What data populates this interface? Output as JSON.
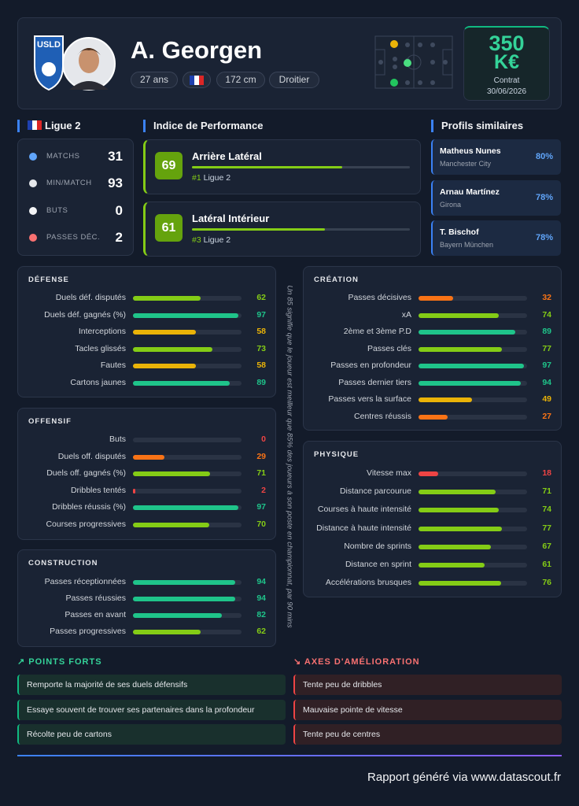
{
  "header": {
    "name": "A. Georgen",
    "tags": [
      "27 ans",
      "172 cm",
      "Droitier"
    ],
    "contract": {
      "amount": "350",
      "unit": "K€",
      "label": "Contrat",
      "date": "30/06/2026"
    }
  },
  "league": {
    "title": "Ligue 2",
    "stats": [
      {
        "label": "MATCHS",
        "value": 31
      },
      {
        "label": "MIN/MATCH",
        "value": 93
      },
      {
        "label": "BUTS",
        "value": 0
      },
      {
        "label": "PASSES DÉC.",
        "value": 2
      }
    ]
  },
  "performance": {
    "title": "Indice de Performance",
    "items": [
      {
        "score": 69,
        "role": "Arrière Latéral",
        "rank": "#1",
        "league": "Ligue 2"
      },
      {
        "score": 61,
        "role": "Latéral Intérieur",
        "rank": "#3",
        "league": "Ligue 2"
      }
    ]
  },
  "similar": {
    "title": "Profils similaires",
    "items": [
      {
        "name": "Matheus Nunes",
        "club": "Manchester City",
        "match": "80%"
      },
      {
        "name": "Arnau Martínez",
        "club": "Girona",
        "match": "78%"
      },
      {
        "name": "T. Bischof",
        "club": "Bayern München",
        "match": "78%"
      }
    ]
  },
  "panels": [
    {
      "title": "DÉFENSE",
      "rows": [
        {
          "label": "Duels déf. disputés",
          "value": 62
        },
        {
          "label": "Duels déf. gagnés (%)",
          "value": 97
        },
        {
          "label": "Interceptions",
          "value": 58
        },
        {
          "label": "Tacles glissés",
          "value": 73
        },
        {
          "label": "Fautes",
          "value": 58
        },
        {
          "label": "Cartons jaunes",
          "value": 89
        }
      ]
    },
    {
      "title": "OFFENSIF",
      "rows": [
        {
          "label": "Buts",
          "value": 0
        },
        {
          "label": "Duels off. disputés",
          "value": 29
        },
        {
          "label": "Duels off. gagnés (%)",
          "value": 71
        },
        {
          "label": "Dribbles tentés",
          "value": 2
        },
        {
          "label": "Dribbles réussis (%)",
          "value": 97
        },
        {
          "label": "Courses progressives",
          "value": 70
        }
      ]
    },
    {
      "title": "CONSTRUCTION",
      "rows": [
        {
          "label": "Passes réceptionnées",
          "value": 94
        },
        {
          "label": "Passes réussies",
          "value": 94
        },
        {
          "label": "Passes en avant",
          "value": 82
        },
        {
          "label": "Passes progressives",
          "value": 62
        }
      ]
    },
    {
      "title": "CRÉATION",
      "rows": [
        {
          "label": "Passes décisives",
          "value": 32
        },
        {
          "label": "xA",
          "value": 74
        },
        {
          "label": "2ème et 3ème P.D",
          "value": 89
        },
        {
          "label": "Passes clés",
          "value": 77
        },
        {
          "label": "Passes en profondeur",
          "value": 97
        },
        {
          "label": "Passes dernier tiers",
          "value": 94
        },
        {
          "label": "Passes vers la surface",
          "value": 49
        },
        {
          "label": "Centres réussis",
          "value": 27
        }
      ]
    },
    {
      "title": "PHYSIQUE",
      "rows": [
        {
          "label": "Vitesse max",
          "value": 18
        },
        {
          "label": "Distance parcourue",
          "value": 71
        },
        {
          "label": "Courses à haute intensité",
          "value": 74
        },
        {
          "label": "Distance à haute intensité",
          "value": 77
        },
        {
          "label": "Nombre de sprints",
          "value": 67
        },
        {
          "label": "Distance en sprint",
          "value": 61
        },
        {
          "label": "Accélérations brusques",
          "value": 76
        }
      ]
    }
  ],
  "note": "Un 85 signifie que le joueur est meilleur que 85% des joueurs à son poste en championnat, par 90 mins",
  "strengths": {
    "title": "POINTS FORTS",
    "items": [
      "Remporte la majorité de ses duels défensifs",
      "Essaye souvent de trouver ses partenaires dans la profondeur",
      "Récolte peu de cartons"
    ]
  },
  "improvements": {
    "title": "AXES D'AMÉLIORATION",
    "items": [
      "Tente peu de dribbles",
      "Mauvaise pointe de vitesse",
      "Tente peu de centres"
    ]
  },
  "footer": "Rapport généré via www.datascout.fr"
}
